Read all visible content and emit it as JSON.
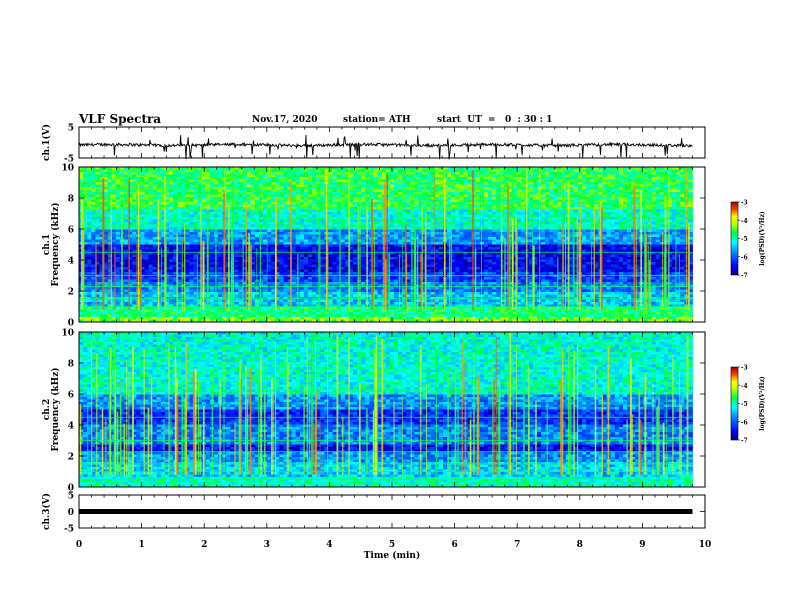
{
  "header": {
    "title": "VLF Spectra",
    "date": "Nov.17, 2020",
    "station": "station= ATH",
    "start_ut": "start  UT  =   0  : 30 : 1"
  },
  "colors": {
    "background": "#ffffff",
    "axes": "#000000",
    "colormap": [
      "#000080",
      "#0000ff",
      "#0080ff",
      "#00ffff",
      "#00ff80",
      "#80ff00",
      "#ffff00",
      "#ff8000",
      "#ff0000",
      "#800000"
    ]
  },
  "chart_data": [
    {
      "id": "ch1_waveform",
      "type": "line",
      "ylabel": "ch.1(V)",
      "ylim": [
        -5,
        5
      ],
      "yticks": [
        "5",
        "-5"
      ],
      "xlim": [
        0,
        10
      ],
      "signal": "noisy trace near -0.8 V with downward spikes"
    },
    {
      "id": "ch1_spectrogram",
      "type": "heatmap",
      "ylabel_top": "ch.1",
      "ylabel": "Frequency (kHz)",
      "ylim": [
        0,
        10
      ],
      "yticks": [
        "0",
        "2",
        "4",
        "6",
        "8",
        "10"
      ],
      "xlim": [
        0,
        10
      ],
      "data_end_min": 9.8,
      "colorbar": {
        "label": "log(PSD)(V²/Hz)",
        "range": [
          -7,
          -3
        ],
        "ticks": [
          "-3",
          "-4",
          "-5",
          "-6",
          "-7"
        ]
      },
      "bands_khz": [
        {
          "from": 0,
          "to": 0.3,
          "level": 0.65
        },
        {
          "from": 0.3,
          "to": 1.0,
          "level": 0.55
        },
        {
          "from": 1.0,
          "to": 2.0,
          "level": 0.38
        },
        {
          "from": 2.0,
          "to": 2.6,
          "level": 0.3
        },
        {
          "from": 2.6,
          "to": 3.2,
          "level": 0.22
        },
        {
          "from": 3.2,
          "to": 5.0,
          "level": 0.12
        },
        {
          "from": 5.0,
          "to": 6.0,
          "level": 0.33
        },
        {
          "from": 6.0,
          "to": 7.2,
          "level": 0.48
        },
        {
          "from": 7.2,
          "to": 10.0,
          "level": 0.58
        }
      ]
    },
    {
      "id": "ch2_spectrogram",
      "type": "heatmap",
      "ylabel_top": "ch.2",
      "ylabel": "Frequency (kHz)",
      "ylim": [
        0,
        10
      ],
      "yticks": [
        "0",
        "2",
        "4",
        "6",
        "8",
        "10"
      ],
      "xlim": [
        0,
        10
      ],
      "data_end_min": 9.8,
      "colorbar": {
        "label": "log(PSD)(V²/Hz)",
        "range": [
          -7,
          -3
        ],
        "ticks": [
          "-3",
          "-4",
          "-5",
          "-6",
          "-7"
        ]
      },
      "bands_khz": [
        {
          "from": 0,
          "to": 0.6,
          "level": 0.5
        },
        {
          "from": 0.6,
          "to": 1.6,
          "level": 0.4
        },
        {
          "from": 1.6,
          "to": 2.2,
          "level": 0.32
        },
        {
          "from": 2.2,
          "to": 2.8,
          "level": 0.14
        },
        {
          "from": 2.8,
          "to": 4.0,
          "level": 0.3
        },
        {
          "from": 4.0,
          "to": 5.0,
          "level": 0.18
        },
        {
          "from": 5.0,
          "to": 6.0,
          "level": 0.32
        },
        {
          "from": 6.0,
          "to": 10.0,
          "level": 0.47
        }
      ]
    },
    {
      "id": "ch3_waveform",
      "type": "line",
      "ylabel": "ch.3(V)",
      "ylim": [
        -5,
        5
      ],
      "yticks": [
        "5",
        "0",
        "-5"
      ],
      "xlim": [
        0,
        10
      ],
      "value": 0,
      "xlabel": "Time (min)",
      "xticks": [
        "0",
        "1",
        "2",
        "3",
        "4",
        "5",
        "6",
        "7",
        "8",
        "9",
        "10"
      ]
    }
  ]
}
